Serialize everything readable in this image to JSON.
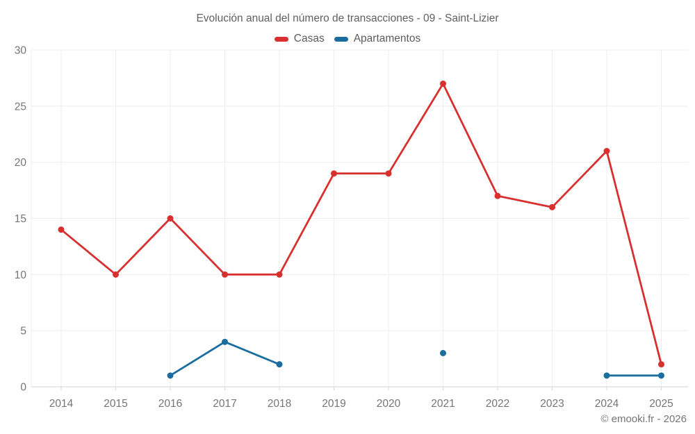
{
  "chart": {
    "title": "Evolución anual del número de transacciones - 09 - Saint-Lizier"
  },
  "footer": {
    "copyright": "© emooki.fr - 2026"
  },
  "colors": {
    "grid": "#ededed",
    "axis": "#d4d4d4",
    "tick_text": "#757575",
    "title_text": "#5f5f5f"
  },
  "chart_data": {
    "type": "line",
    "title": "Evolución anual del número de transacciones - 09 - Saint-Lizier",
    "categories": [
      2014,
      2015,
      2016,
      2017,
      2018,
      2019,
      2020,
      2021,
      2022,
      2023,
      2024,
      2025
    ],
    "series": [
      {
        "name": "Casas",
        "color": "#d7302f",
        "values": [
          14,
          10,
          15,
          10,
          10,
          19,
          19,
          27,
          17,
          16,
          21,
          2
        ]
      },
      {
        "name": "Apartamentos",
        "color": "#1a6d9e",
        "values": [
          null,
          null,
          1,
          4,
          2,
          null,
          null,
          3,
          null,
          null,
          1,
          1
        ]
      }
    ],
    "xlabel": "",
    "ylabel": "",
    "ylim": [
      0,
      30
    ],
    "yticks": [
      0,
      5,
      10,
      15,
      20,
      25,
      30
    ],
    "grid": true,
    "legend_position": "top"
  }
}
